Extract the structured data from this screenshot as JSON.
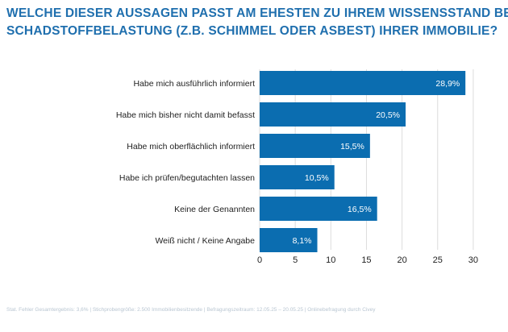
{
  "title_lines": [
    "WELCHE DIESER AUSSAGEN PASST AM EHESTEN ZU IHREM WISSENSSTAND BEZÜGLICH",
    "SCHADSTOFFBELASTUNG (Z.B. SCHIMMEL ODER ASBEST) IHRER IMMOBILIE?"
  ],
  "footnote": "Stat. Fehler Gesamtergebnis: 3,6% | Stichprobengröße: 2.500 Immobilienbesitzende | Befragungszeitraum: 12.05.25 – 20.05.25 | Onlinebefragung durch Civey",
  "colors": {
    "bar": "#0b6db0",
    "title": "#1f6fae",
    "grid": "#dcdcdc",
    "text": "#222222"
  },
  "chart_data": {
    "type": "bar",
    "orientation": "horizontal",
    "categories": [
      "Habe mich ausführlich informiert",
      "Habe mich bisher nicht damit befasst",
      "Habe mich oberflächlich informiert",
      "Habe ich prüfen/begutachten lassen",
      "Keine der Genannten",
      "Weiß nicht / Keine Angabe"
    ],
    "values": [
      28.9,
      20.5,
      15.5,
      10.5,
      16.5,
      8.1
    ],
    "value_labels": [
      "28,9%",
      "20,5%",
      "15,5%",
      "10,5%",
      "16,5%",
      "8,1%"
    ],
    "xlim": [
      0,
      30
    ],
    "xticks": [
      0,
      5,
      10,
      15,
      20,
      25,
      30
    ],
    "grid": true
  }
}
